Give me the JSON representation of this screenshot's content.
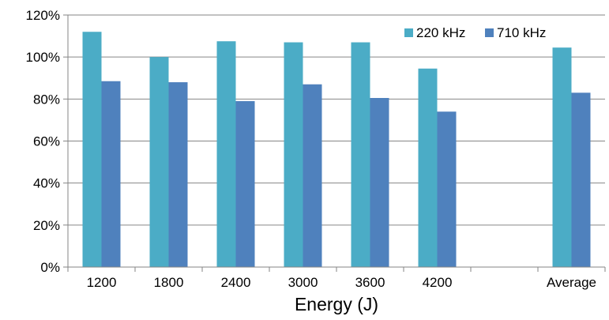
{
  "chart_data": {
    "type": "bar",
    "categories": [
      "1200",
      "1800",
      "2400",
      "3000",
      "3600",
      "4200",
      "",
      "Average"
    ],
    "series": [
      {
        "name": "220 kHz",
        "color": "#4bacc6",
        "values": [
          112,
          100,
          107.5,
          107,
          107,
          94.5,
          null,
          104.5
        ]
      },
      {
        "name": "710 kHz",
        "color": "#4f81bd",
        "values": [
          88.5,
          88,
          79,
          87,
          80.5,
          74,
          null,
          83
        ]
      }
    ],
    "xlabel": "Energy (J)",
    "ylabel": "",
    "ylim": [
      0,
      120
    ],
    "yticks": [
      "0%",
      "20%",
      "40%",
      "60%",
      "80%",
      "100%",
      "120%"
    ],
    "grid": true,
    "legend_position": "top-right"
  }
}
